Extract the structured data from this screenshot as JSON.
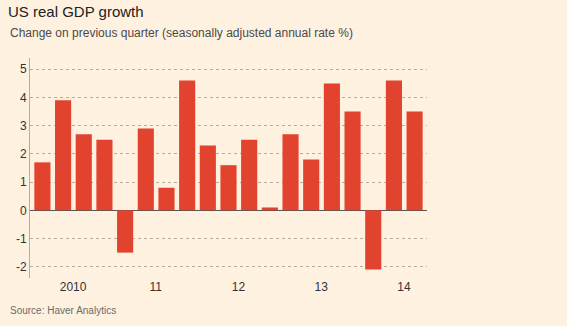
{
  "chart_data": {
    "type": "bar",
    "title": "US real GDP growth",
    "subtitle": "Change on previous quarter (seasonally adjusted annual rate %)",
    "annotations": [
      "Source: Haver Analytics"
    ],
    "categories": [
      null,
      "2010",
      null,
      null,
      null,
      "11",
      null,
      null,
      null,
      "12",
      null,
      null,
      null,
      "13",
      null,
      null,
      null,
      "14",
      null
    ],
    "values": [
      1.7,
      3.9,
      2.7,
      2.5,
      -1.5,
      2.9,
      0.8,
      4.6,
      2.3,
      1.6,
      2.5,
      0.1,
      2.7,
      1.8,
      4.5,
      3.5,
      -2.1,
      4.6,
      3.5
    ],
    "color": "#e2432e",
    "ylim": [
      -2.4,
      5.4
    ],
    "yticks": [
      -2,
      -1,
      0,
      1,
      2,
      3,
      4,
      5
    ],
    "grid": true
  }
}
